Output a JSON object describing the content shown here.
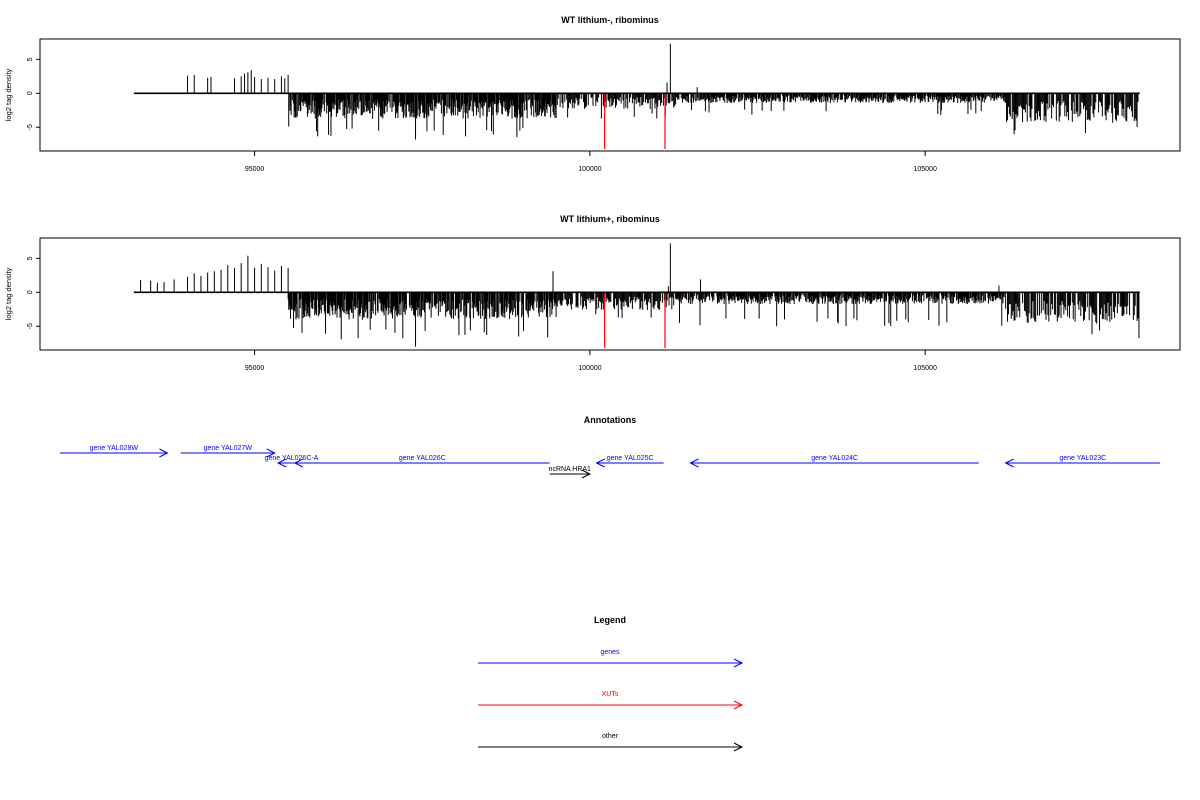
{
  "chart_data": [
    {
      "type": "bar",
      "title": "WT lithium-, ribominus",
      "ylabel": "log2 tag density",
      "xlim": [
        91800,
        108800
      ],
      "ylim": [
        -8.5,
        8
      ],
      "xticks": [
        95000,
        100000,
        105000
      ],
      "yticks": [
        5,
        0,
        -5
      ],
      "xtick_labels": [
        "95000",
        "100000",
        "105000"
      ],
      "ytick_labels": [
        "5",
        "0",
        "-5"
      ],
      "baseline_range": [
        93200,
        108200
      ],
      "sparse_up": [
        [
          94000,
          2.6
        ],
        [
          94100,
          2.7
        ],
        [
          94300,
          2.3
        ],
        [
          94350,
          2.4
        ],
        [
          94700,
          2.2
        ],
        [
          94800,
          2.5
        ],
        [
          94850,
          2.9
        ],
        [
          94900,
          3.1
        ],
        [
          94950,
          3.4
        ],
        [
          95000,
          2.4
        ],
        [
          95100,
          2.1
        ],
        [
          95200,
          2.3
        ],
        [
          95300,
          2.1
        ],
        [
          95400,
          2.5
        ],
        [
          95450,
          2.2
        ],
        [
          95500,
          2.7
        ]
      ],
      "dense_down": [
        {
          "x_range": [
            95500,
            99500
          ],
          "avg": -2.6,
          "max": -6.5
        },
        {
          "x_range": [
            99500,
            101300
          ],
          "avg": -1.6,
          "max": -3.8
        },
        {
          "x_range": [
            101300,
            106200
          ],
          "avg": -1.0,
          "max": -3.2
        },
        {
          "x_range": [
            106200,
            108200
          ],
          "avg": -3.0,
          "max": -6.2
        }
      ],
      "spikes": [
        [
          101200,
          7.3
        ],
        [
          101150,
          1.6
        ],
        [
          101600,
          0.9
        ],
        [
          97400,
          -6.8
        ]
      ],
      "xut_marks": [
        [
          100220,
          -8.2
        ],
        [
          101120,
          -8.2
        ]
      ]
    },
    {
      "type": "bar",
      "title": "WT lithium+, ribominus",
      "ylabel": "log2 tag density",
      "xlim": [
        91800,
        108800
      ],
      "ylim": [
        -8.5,
        8
      ],
      "xticks": [
        95000,
        100000,
        105000
      ],
      "yticks": [
        5,
        0,
        -5
      ],
      "xtick_labels": [
        "95000",
        "100000",
        "105000"
      ],
      "ytick_labels": [
        "5",
        "0",
        "-5"
      ],
      "baseline_range": [
        93200,
        108200
      ],
      "sparse_up": [
        [
          93300,
          1.8
        ],
        [
          93450,
          1.7
        ],
        [
          93550,
          1.4
        ],
        [
          93650,
          1.5
        ],
        [
          93800,
          1.9
        ],
        [
          94000,
          2.3
        ],
        [
          94100,
          2.8
        ],
        [
          94200,
          2.4
        ],
        [
          94300,
          2.9
        ],
        [
          94400,
          3.1
        ],
        [
          94500,
          3.3
        ],
        [
          94600,
          4.0
        ],
        [
          94700,
          3.6
        ],
        [
          94800,
          4.3
        ],
        [
          94900,
          5.4
        ],
        [
          95000,
          3.6
        ],
        [
          95100,
          4.2
        ],
        [
          95200,
          3.7
        ],
        [
          95300,
          3.2
        ],
        [
          95400,
          3.9
        ],
        [
          95500,
          3.6
        ],
        [
          99450,
          3.1
        ],
        [
          101650,
          1.9
        ],
        [
          106100,
          1.0
        ]
      ],
      "dense_down": [
        {
          "x_range": [
            95500,
            99500
          ],
          "avg": -2.8,
          "max": -7.0
        },
        {
          "x_range": [
            99500,
            101300
          ],
          "avg": -1.8,
          "max": -4.0
        },
        {
          "x_range": [
            101300,
            106200
          ],
          "avg": -1.2,
          "max": -5.0
        },
        {
          "x_range": [
            106200,
            108200
          ],
          "avg": -3.2,
          "max": -7.2
        }
      ],
      "spikes": [
        [
          101200,
          7.2
        ],
        [
          101170,
          0.9
        ],
        [
          97400,
          -8.0
        ]
      ],
      "xut_marks": [
        [
          100220,
          -8.2
        ],
        [
          101120,
          -8.2
        ]
      ]
    }
  ],
  "annotations": {
    "title": "Annotations",
    "features": [
      {
        "label": "gene YAL028W",
        "start": 92100,
        "end": 93700,
        "strand": "+",
        "row": 0,
        "kind": "genes"
      },
      {
        "label": "gene YAL027W",
        "start": 93900,
        "end": 95300,
        "strand": "+",
        "row": 0,
        "kind": "genes"
      },
      {
        "label": "gene YAL026C-A",
        "start": 95350,
        "end": 95750,
        "strand": "-",
        "row": 1,
        "kind": "genes"
      },
      {
        "label": "gene YAL026C",
        "start": 95600,
        "end": 99400,
        "strand": "-",
        "row": 1,
        "kind": "genes"
      },
      {
        "label": "ncRNA HRA1",
        "start": 99400,
        "end": 100000,
        "strand": "+",
        "row": 2,
        "kind": "other"
      },
      {
        "label": "gene YAL025C",
        "start": 100100,
        "end": 101100,
        "strand": "-",
        "row": 1,
        "kind": "genes"
      },
      {
        "label": "gene YAL024C",
        "start": 101500,
        "end": 105800,
        "strand": "-",
        "row": 1,
        "kind": "genes"
      },
      {
        "label": "gene YAL023C",
        "start": 106200,
        "end": 108500,
        "strand": "-",
        "row": 1,
        "kind": "genes"
      }
    ]
  },
  "legend": {
    "title": "Legend",
    "items": [
      {
        "label": "genes",
        "color": "#0000ff"
      },
      {
        "label": "XUTs",
        "color": "#ff0000"
      },
      {
        "label": "other",
        "color": "#000000"
      }
    ]
  },
  "colors": {
    "genes": "#0000ff",
    "XUTs": "#ff0000",
    "other": "#000000",
    "axis": "#000000"
  }
}
